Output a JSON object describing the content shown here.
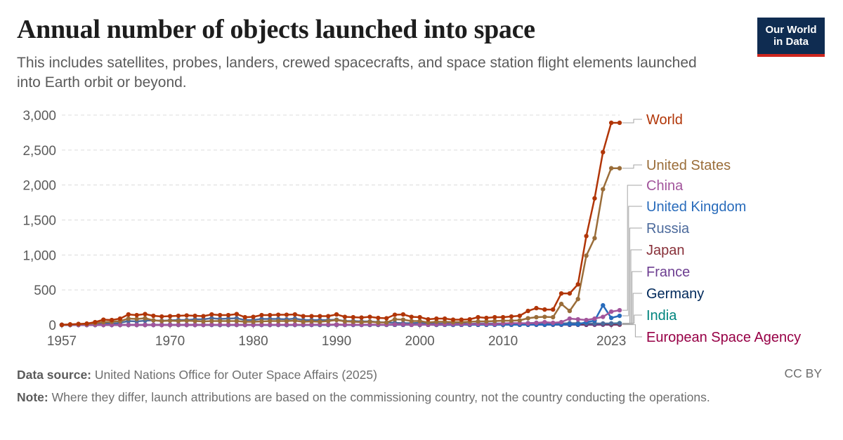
{
  "header": {
    "title": "Annual number of objects launched into space",
    "subtitle": "This includes satellites, probes, landers, crewed spacecrafts, and space station flight elements launched into Earth orbit or beyond.",
    "logo_text": "Our World in Data"
  },
  "footer": {
    "source_label": "Data source:",
    "source_text": "United Nations Office for Outer Space Affairs (2025)",
    "license": "CC BY",
    "note_label": "Note:",
    "note_text": "Where they differ, launch attributions are based on the commissioning country, not the country conducting the operations."
  },
  "chart_data": {
    "type": "line",
    "title": "Annual number of objects launched into space",
    "xlabel": "",
    "ylabel": "",
    "xlim": [
      1957,
      2024
    ],
    "ylim": [
      0,
      3000
    ],
    "x_ticks": [
      "1957",
      "1970",
      "1980",
      "1990",
      "2000",
      "2010",
      "2023"
    ],
    "y_ticks": [
      "0",
      "500",
      "1,000",
      "1,500",
      "2,000",
      "2,500",
      "3,000"
    ],
    "y_tick_values": [
      0,
      500,
      1000,
      1500,
      2000,
      2500,
      3000
    ],
    "grid": true,
    "legend": "right-end labels",
    "x": [
      1957,
      1958,
      1959,
      1960,
      1961,
      1962,
      1963,
      1964,
      1965,
      1966,
      1967,
      1968,
      1969,
      1970,
      1971,
      1972,
      1973,
      1974,
      1975,
      1976,
      1977,
      1978,
      1979,
      1980,
      1981,
      1982,
      1983,
      1984,
      1985,
      1986,
      1987,
      1988,
      1989,
      1990,
      1991,
      1992,
      1993,
      1994,
      1995,
      1996,
      1997,
      1998,
      1999,
      2000,
      2001,
      2002,
      2003,
      2004,
      2005,
      2006,
      2007,
      2008,
      2009,
      2010,
      2011,
      2012,
      2013,
      2014,
      2015,
      2016,
      2017,
      2018,
      2019,
      2020,
      2021,
      2022,
      2023,
      2024
    ],
    "series": [
      {
        "name": "World",
        "color": "#b13507",
        "values": [
          2,
          8,
          14,
          19,
          40,
          75,
          70,
          90,
          150,
          140,
          155,
          130,
          120,
          125,
          130,
          135,
          130,
          125,
          150,
          140,
          140,
          155,
          110,
          115,
          140,
          140,
          145,
          145,
          150,
          125,
          125,
          125,
          125,
          150,
          115,
          110,
          105,
          115,
          100,
          95,
          145,
          150,
          115,
          110,
          80,
          90,
          90,
          75,
          75,
          80,
          110,
          100,
          110,
          110,
          120,
          130,
          200,
          240,
          220,
          220,
          450,
          450,
          580,
          1270,
          1810,
          2470,
          2890,
          2890
        ]
      },
      {
        "name": "United States",
        "color": "#9a6d39",
        "values": [
          0,
          5,
          10,
          14,
          25,
          40,
          45,
          55,
          90,
          85,
          95,
          65,
          55,
          60,
          55,
          60,
          55,
          50,
          55,
          55,
          55,
          55,
          45,
          45,
          50,
          55,
          55,
          55,
          60,
          45,
          50,
          45,
          55,
          70,
          50,
          45,
          40,
          45,
          35,
          35,
          80,
          75,
          55,
          55,
          35,
          45,
          45,
          40,
          40,
          45,
          50,
          50,
          55,
          60,
          60,
          65,
          95,
          110,
          115,
          110,
          300,
          200,
          370,
          990,
          1240,
          1940,
          2240,
          2240
        ]
      },
      {
        "name": "China",
        "color": "#a2559c",
        "values": [
          0,
          0,
          0,
          0,
          0,
          0,
          0,
          0,
          0,
          0,
          0,
          0,
          0,
          0,
          1,
          0,
          0,
          0,
          3,
          3,
          2,
          1,
          0,
          0,
          2,
          2,
          2,
          3,
          2,
          3,
          3,
          5,
          4,
          3,
          2,
          4,
          2,
          5,
          4,
          3,
          6,
          6,
          2,
          5,
          2,
          5,
          7,
          9,
          8,
          10,
          12,
          12,
          10,
          20,
          25,
          25,
          22,
          28,
          40,
          30,
          40,
          90,
          80,
          70,
          90,
          115,
          190,
          210
        ]
      },
      {
        "name": "United Kingdom",
        "color": "#286bbb",
        "values": [
          0,
          0,
          0,
          0,
          0,
          1,
          0,
          1,
          0,
          0,
          1,
          0,
          1,
          1,
          1,
          0,
          0,
          1,
          0,
          0,
          0,
          1,
          0,
          0,
          0,
          0,
          0,
          0,
          0,
          0,
          0,
          0,
          1,
          2,
          1,
          0,
          0,
          1,
          1,
          1,
          2,
          2,
          3,
          3,
          2,
          2,
          2,
          1,
          2,
          3,
          2,
          2,
          2,
          3,
          2,
          2,
          3,
          4,
          4,
          5,
          6,
          8,
          7,
          40,
          60,
          280,
          100,
          130
        ]
      },
      {
        "name": "Russia",
        "color": "#4c6a9c",
        "values": [
          2,
          1,
          3,
          3,
          10,
          20,
          18,
          30,
          55,
          50,
          60,
          65,
          60,
          65,
          70,
          70,
          80,
          80,
          95,
          85,
          90,
          95,
          70,
          70,
          85,
          85,
          85,
          80,
          90,
          70,
          70,
          70,
          70,
          75,
          55,
          55,
          50,
          50,
          40,
          35,
          30,
          25,
          25,
          30,
          20,
          20,
          20,
          15,
          20,
          15,
          20,
          20,
          20,
          20,
          25,
          20,
          25,
          30,
          25,
          20,
          20,
          25,
          25,
          20,
          20,
          20,
          20,
          20
        ]
      },
      {
        "name": "Japan",
        "color": "#883039",
        "values": [
          0,
          0,
          0,
          0,
          0,
          0,
          0,
          0,
          0,
          0,
          0,
          0,
          0,
          1,
          2,
          1,
          0,
          1,
          1,
          1,
          3,
          2,
          3,
          2,
          3,
          2,
          3,
          3,
          2,
          2,
          3,
          3,
          3,
          6,
          3,
          3,
          2,
          3,
          3,
          3,
          3,
          4,
          3,
          4,
          3,
          5,
          5,
          2,
          3,
          6,
          5,
          4,
          4,
          5,
          5,
          6,
          8,
          10,
          10,
          12,
          14,
          15,
          12,
          15,
          20,
          15,
          12,
          10
        ]
      },
      {
        "name": "France",
        "color": "#6d3e91",
        "values": [
          0,
          0,
          0,
          0,
          0,
          0,
          0,
          0,
          1,
          2,
          2,
          0,
          0,
          1,
          1,
          1,
          1,
          1,
          2,
          1,
          1,
          1,
          1,
          1,
          1,
          1,
          1,
          1,
          2,
          2,
          1,
          2,
          3,
          2,
          2,
          2,
          2,
          1,
          2,
          2,
          3,
          4,
          3,
          2,
          2,
          2,
          2,
          3,
          2,
          3,
          2,
          3,
          3,
          4,
          5,
          4,
          3,
          4,
          4,
          4,
          4,
          5,
          5,
          5,
          6,
          5,
          5,
          5
        ]
      },
      {
        "name": "Germany",
        "color": "#00295b",
        "values": [
          0,
          0,
          0,
          0,
          0,
          0,
          0,
          0,
          0,
          0,
          0,
          0,
          1,
          1,
          1,
          0,
          0,
          1,
          1,
          1,
          0,
          1,
          0,
          1,
          0,
          0,
          1,
          0,
          1,
          0,
          1,
          1,
          1,
          2,
          1,
          1,
          1,
          1,
          1,
          1,
          2,
          2,
          1,
          2,
          2,
          1,
          2,
          1,
          2,
          2,
          2,
          2,
          3,
          3,
          3,
          4,
          4,
          3,
          3,
          4,
          5,
          5,
          4,
          5,
          6,
          7,
          6,
          8
        ]
      },
      {
        "name": "India",
        "color": "#00847e",
        "values": [
          0,
          0,
          0,
          0,
          0,
          0,
          0,
          0,
          0,
          0,
          0,
          0,
          0,
          0,
          0,
          0,
          0,
          0,
          1,
          0,
          0,
          0,
          1,
          1,
          2,
          1,
          1,
          0,
          0,
          0,
          1,
          1,
          0,
          1,
          0,
          1,
          1,
          1,
          1,
          1,
          2,
          1,
          2,
          1,
          2,
          1,
          2,
          1,
          2,
          1,
          2,
          3,
          3,
          3,
          4,
          4,
          5,
          5,
          6,
          8,
          10,
          8,
          10,
          7,
          10,
          15,
          20,
          25
        ]
      },
      {
        "name": "European Space Agency",
        "color": "#970046",
        "values": [
          0,
          0,
          0,
          0,
          0,
          0,
          0,
          0,
          0,
          0,
          0,
          0,
          0,
          0,
          0,
          0,
          0,
          0,
          1,
          0,
          1,
          1,
          1,
          1,
          1,
          1,
          2,
          2,
          1,
          1,
          1,
          2,
          1,
          2,
          2,
          1,
          2,
          2,
          2,
          2,
          2,
          2,
          2,
          2,
          2,
          1,
          2,
          2,
          2,
          3,
          2,
          2,
          3,
          3,
          3,
          2,
          3,
          4,
          3,
          3,
          3,
          2,
          3,
          2,
          3,
          4,
          3,
          4
        ]
      }
    ]
  }
}
